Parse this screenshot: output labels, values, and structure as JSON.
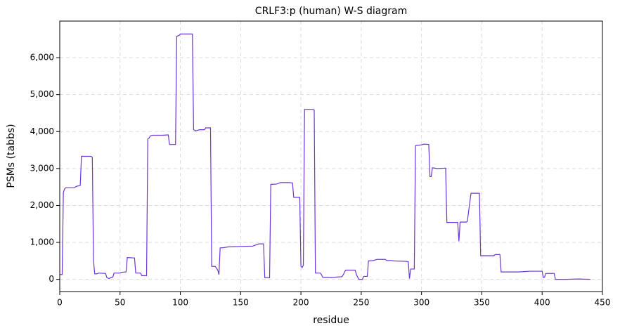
{
  "chart_data": {
    "type": "line",
    "title": "CRLF3:p (human) W-S diagram",
    "x_label": "residue",
    "y_label": "PSMs (tabbs)",
    "color": "#6a35d9",
    "grid": true,
    "x": [
      0,
      2,
      3,
      4,
      5,
      12,
      14,
      17,
      18,
      26,
      27,
      28,
      29,
      31,
      32,
      38,
      39,
      41,
      43,
      44,
      45,
      50,
      51,
      55,
      56,
      62,
      63,
      67,
      68,
      72,
      73,
      74,
      75,
      77,
      85,
      90,
      91,
      96,
      97,
      99,
      100,
      110,
      111,
      113,
      116,
      120,
      121,
      125,
      126,
      129,
      131,
      132,
      133,
      136,
      140,
      150,
      160,
      165,
      169,
      170,
      174,
      175,
      180,
      183,
      190,
      193,
      194,
      199,
      200,
      201,
      202,
      203,
      210,
      211,
      212,
      216,
      217,
      218,
      225,
      233,
      234,
      235,
      237,
      245,
      246,
      248,
      251,
      252,
      255,
      256,
      260,
      263,
      270,
      271,
      275,
      277,
      286,
      289,
      290,
      291,
      294,
      295,
      300,
      302,
      306,
      307,
      308,
      309,
      313,
      320,
      321,
      330,
      331,
      332,
      337,
      338,
      341,
      348,
      349,
      360,
      361,
      365,
      366,
      380,
      385,
      390,
      400,
      401,
      402,
      403,
      410,
      411,
      420,
      430,
      440
    ],
    "values": [
      130,
      130,
      2350,
      2450,
      2480,
      2480,
      2520,
      2540,
      3330,
      3330,
      3300,
      500,
      150,
      150,
      170,
      160,
      50,
      20,
      60,
      60,
      170,
      170,
      190,
      200,
      590,
      580,
      170,
      170,
      100,
      100,
      3800,
      3820,
      3880,
      3900,
      3900,
      3910,
      3650,
      3650,
      6580,
      6600,
      6640,
      6640,
      4050,
      4020,
      4050,
      4050,
      4100,
      4100,
      350,
      350,
      250,
      130,
      850,
      860,
      880,
      890,
      900,
      960,
      960,
      50,
      40,
      2570,
      2580,
      2620,
      2620,
      2610,
      2220,
      2220,
      350,
      320,
      380,
      4600,
      4600,
      4580,
      170,
      170,
      130,
      60,
      50,
      70,
      70,
      120,
      250,
      250,
      130,
      0,
      0,
      80,
      80,
      500,
      510,
      540,
      540,
      510,
      510,
      500,
      490,
      480,
      20,
      280,
      280,
      3620,
      3640,
      3660,
      3650,
      2780,
      2780,
      3020,
      3000,
      3010,
      1540,
      1540,
      1030,
      1550,
      1550,
      1570,
      2330,
      2330,
      640,
      640,
      670,
      670,
      200,
      200,
      210,
      220,
      220,
      50,
      60,
      160,
      160,
      0,
      0,
      10,
      0
    ],
    "xlim": [
      0,
      450
    ],
    "xticks": [
      0,
      50,
      100,
      150,
      200,
      250,
      300,
      350,
      400,
      450
    ],
    "ylim": [
      -330,
      6990
    ],
    "yticks": [
      0,
      {
        "value": 1000,
        "label": "1,000"
      },
      {
        "value": 2000,
        "label": "2,000"
      },
      {
        "value": 3000,
        "label": "3,000"
      },
      {
        "value": 4000,
        "label": "4,000"
      },
      {
        "value": 5000,
        "label": "5,000"
      },
      {
        "value": 6000,
        "label": "6,000"
      }
    ]
  }
}
